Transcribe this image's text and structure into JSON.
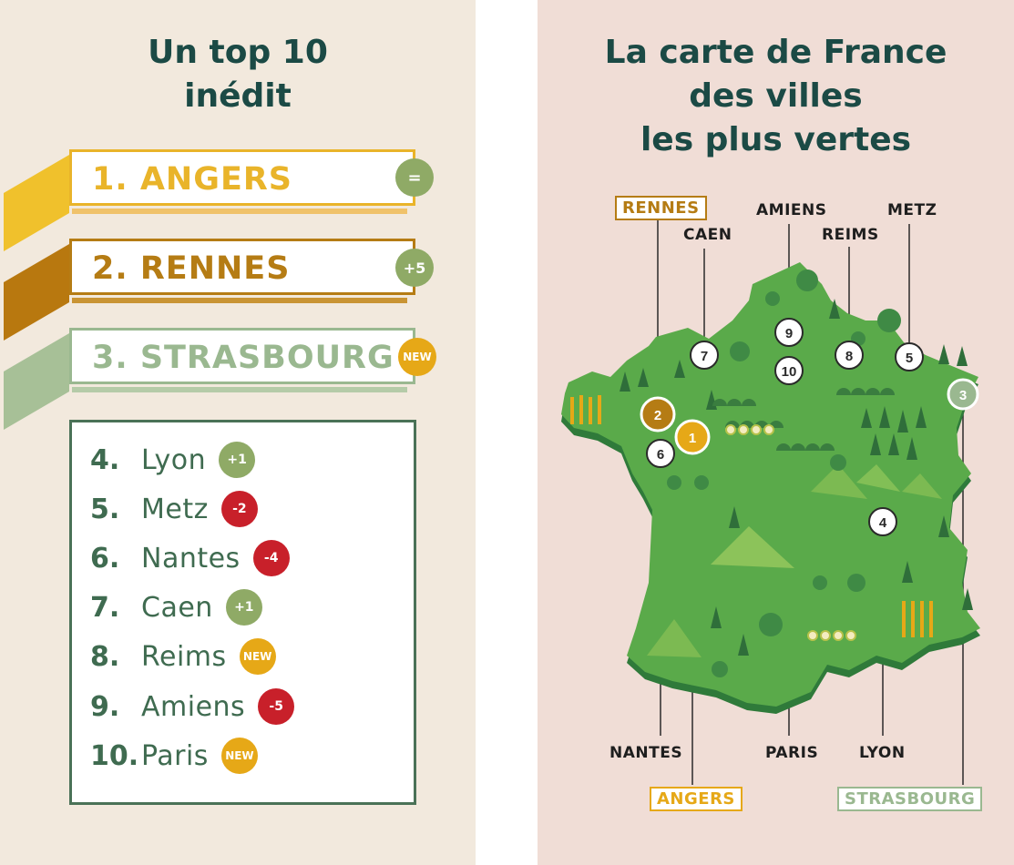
{
  "left": {
    "title_line1": "Un top 10",
    "title_line2": "inédit",
    "top3": [
      {
        "rank": "1.",
        "city": "ANGERS",
        "badge": "=",
        "color": "#e9b42a",
        "badge_color": "#8faa66"
      },
      {
        "rank": "2.",
        "city": "RENNES",
        "badge": "+5",
        "color": "#b57c14",
        "badge_color": "#8faa66"
      },
      {
        "rank": "3.",
        "city": "STRASBOURG",
        "badge": "NEW",
        "color": "#9ab890",
        "badge_color": "#e6a817"
      }
    ],
    "rest": [
      {
        "rank": "4.",
        "city": "Lyon",
        "badge": "+1",
        "badge_color": "#8faa66"
      },
      {
        "rank": "5.",
        "city": "Metz",
        "badge": "-2",
        "badge_color": "#c8202a"
      },
      {
        "rank": "6.",
        "city": "Nantes",
        "badge": "-4",
        "badge_color": "#c8202a"
      },
      {
        "rank": "7.",
        "city": "Caen",
        "badge": "+1",
        "badge_color": "#8faa66"
      },
      {
        "rank": "8.",
        "city": "Reims",
        "badge": "NEW",
        "badge_color": "#e6a817"
      },
      {
        "rank": "9.",
        "city": "Amiens",
        "badge": "-5",
        "badge_color": "#c8202a"
      },
      {
        "rank": "10.",
        "city": "Paris",
        "badge": "NEW",
        "badge_color": "#e6a817"
      }
    ]
  },
  "right": {
    "title_line1": "La carte de France",
    "title_line2": "des villes",
    "title_line3": "les plus vertes",
    "labels": {
      "rennes": "RENNES",
      "caen": "CAEN",
      "amiens": "AMIENS",
      "reims": "REIMS",
      "metz": "METZ",
      "nantes": "NANTES",
      "paris": "PARIS",
      "lyon": "LYON",
      "angers": "ANGERS",
      "strasbourg": "STRASBOURG"
    },
    "markers": [
      "1",
      "2",
      "3",
      "4",
      "5",
      "6",
      "7",
      "8",
      "9",
      "10"
    ]
  },
  "colors": {
    "left_bg": "#f2e9dd",
    "right_bg": "#f0ddd6",
    "title": "#1b4a45",
    "map_green": "#5aaa4a",
    "map_edge": "#2f7a3a"
  }
}
